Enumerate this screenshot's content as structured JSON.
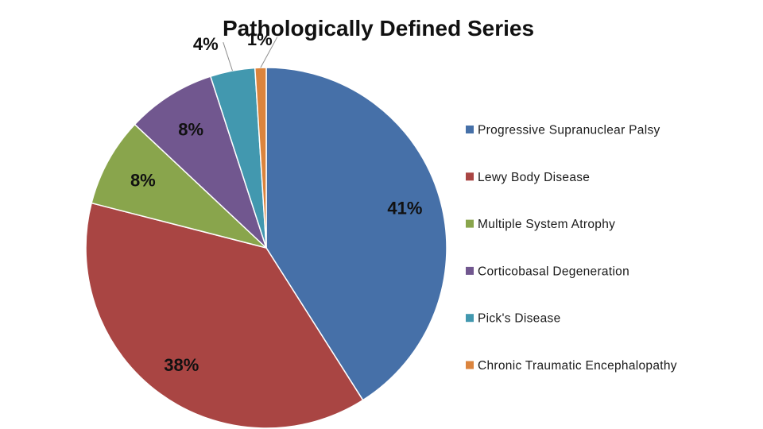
{
  "chart_data": {
    "type": "pie",
    "title": "Pathologically Defined Series",
    "categories": [
      "Progressive Supranuclear Palsy",
      "Lewy Body Disease",
      "Multiple System Atrophy",
      "Corticobasal Degeneration",
      "Pick's Disease",
      "Chronic Traumatic Encephalopathy"
    ],
    "values": [
      41,
      38,
      8,
      8,
      4,
      1
    ],
    "data_labels": [
      "41%",
      "38%",
      "8%",
      "8%",
      "4%",
      "1%"
    ],
    "colors": [
      "#4670a8",
      "#a94543",
      "#89a54c",
      "#71578f",
      "#4298af",
      "#db843d"
    ],
    "legend_position": "right",
    "start_angle": "12 o'clock",
    "direction": "clockwise"
  }
}
